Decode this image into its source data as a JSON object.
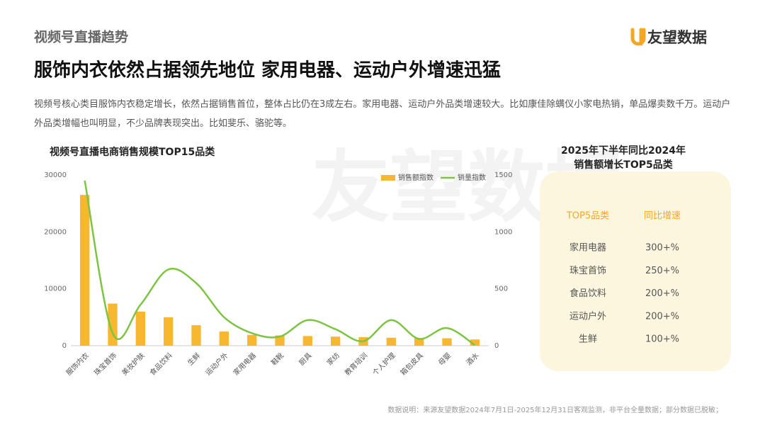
{
  "header": {
    "section": "视频号直播趋势",
    "brand": "友望数据",
    "title": "服饰内衣依然占据领先地位 家用电器、运动户外增速迅猛",
    "description": "视频号核心类目服饰内衣稳定增长，依然占据销售首位，整体占比仍在3成左右。家用电器、运动户外品类增速较大。比如康佳除螨仪小家电热销，单品爆卖数千万。运动户外品类增幅也叫明显，不少品牌表现突出。比如斐乐、骆驼等。"
  },
  "chart_data": {
    "type": "bar",
    "title": "视频号直播电商销售规模TOP15品类",
    "categories": [
      "服饰内衣",
      "珠宝首饰",
      "美妆护肤",
      "食品饮料",
      "生鲜",
      "运动户外",
      "家用电器",
      "鞋靴",
      "厨具",
      "家纺",
      "教育培训",
      "个人护理",
      "箱包皮具",
      "母婴",
      "酒水"
    ],
    "series": [
      {
        "name": "销售额指数",
        "color": "#f7b731",
        "type": "bar",
        "values": [
          26500,
          7400,
          6000,
          5000,
          3600,
          2500,
          1900,
          1800,
          1700,
          1600,
          1500,
          1400,
          1300,
          1300,
          1100
        ]
      },
      {
        "name": "销量指数",
        "color": "#7dc443",
        "type": "line",
        "axis": "y2",
        "values": [
          1450,
          110,
          360,
          670,
          550,
          250,
          110,
          80,
          225,
          145,
          40,
          225,
          60,
          155,
          5
        ]
      }
    ],
    "ylim": [
      0,
      30000
    ],
    "yticks": [
      0,
      10000,
      20000,
      30000
    ],
    "y2lim": [
      0,
      1500
    ],
    "y2ticks": [
      0,
      500,
      1000,
      1500
    ],
    "grid": false
  },
  "table": {
    "title": [
      "2025年下半年同比2024年",
      "销售额增长TOP5品类"
    ],
    "columns": [
      "TOP5品类",
      "同比增速"
    ],
    "rows": [
      [
        "家用电器",
        "300+%"
      ],
      [
        "珠宝首饰",
        "250+%"
      ],
      [
        "食品饮料",
        "200+%"
      ],
      [
        "运动户外",
        "200+%"
      ],
      [
        "生鲜",
        "100+%"
      ]
    ]
  },
  "footnote": "数据说明：来源友望数据2024年7月1日-2025年12月31日客观监测，非平台全量数据；部分数据已脱敏；"
}
